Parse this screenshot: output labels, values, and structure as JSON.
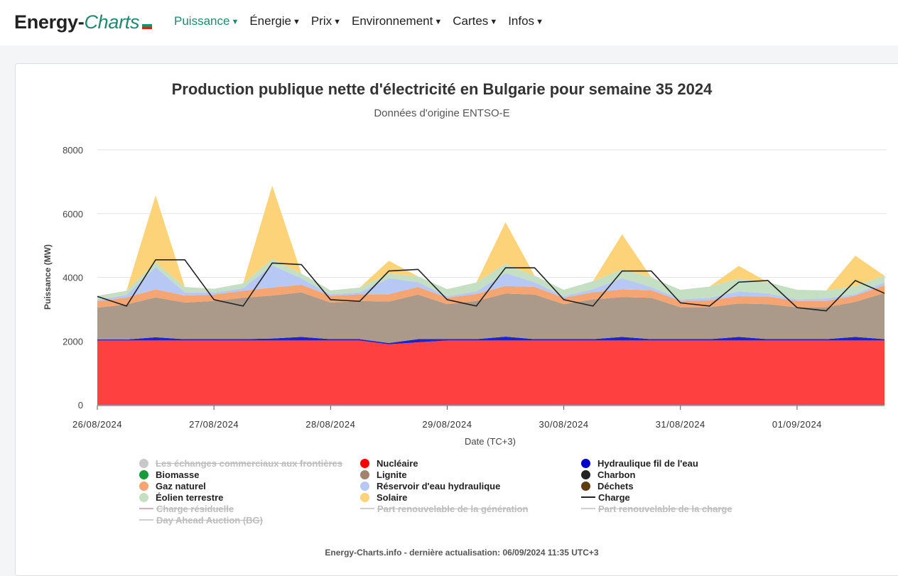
{
  "header": {
    "logo_prefix": "Energy-",
    "logo_suffix": "Charts",
    "flag_colors": [
      "#ffffff",
      "#00966e",
      "#d62612"
    ],
    "nav": [
      {
        "label": "Puissance",
        "active": true
      },
      {
        "label": "Énergie"
      },
      {
        "label": "Prix"
      },
      {
        "label": "Environnement"
      },
      {
        "label": "Cartes"
      },
      {
        "label": "Infos"
      }
    ]
  },
  "chart_data": {
    "type": "area",
    "title": "Production publique nette d'électricité en Bulgarie pour semaine 35 2024",
    "subtitle": "Données d'origine ENTSO-E",
    "xlabel": "Date (TC+3)",
    "ylabel": "Puissance (MW)",
    "ylim": [
      0,
      8000
    ],
    "yticks": [
      "0",
      "2000",
      "4000",
      "6000",
      "8000"
    ],
    "xticks": [
      "26/08/2024",
      "27/08/2024",
      "28/08/2024",
      "29/08/2024",
      "30/08/2024",
      "31/08/2024",
      "01/09/2024"
    ],
    "x": [
      "26/08/2024 00:00",
      "26/08/2024 06:00",
      "26/08/2024 12:00",
      "26/08/2024 18:00",
      "27/08/2024 00:00",
      "27/08/2024 06:00",
      "27/08/2024 12:00",
      "27/08/2024 18:00",
      "28/08/2024 00:00",
      "28/08/2024 06:00",
      "28/08/2024 12:00",
      "28/08/2024 18:00",
      "29/08/2024 00:00",
      "29/08/2024 06:00",
      "29/08/2024 12:00",
      "29/08/2024 18:00",
      "30/08/2024 00:00",
      "30/08/2024 06:00",
      "30/08/2024 12:00",
      "30/08/2024 18:00",
      "31/08/2024 00:00",
      "31/08/2024 06:00",
      "31/08/2024 12:00",
      "31/08/2024 18:00",
      "01/09/2024 00:00",
      "01/09/2024 06:00",
      "01/09/2024 12:00",
      "01/09/2024 18:00"
    ],
    "stack_series": [
      {
        "name": "Nucléaire",
        "color": "#ff4040",
        "values": [
          2020,
          2020,
          2020,
          2020,
          2020,
          2020,
          2020,
          2020,
          2020,
          2020,
          1900,
          1960,
          2020,
          2020,
          2020,
          2020,
          2020,
          2020,
          2020,
          2020,
          2020,
          2020,
          2020,
          2020,
          2020,
          2020,
          2020,
          2020
        ]
      },
      {
        "name": "Hydraulique fil de l'eau",
        "color": "#1e22c8",
        "values": [
          30,
          30,
          100,
          40,
          40,
          40,
          60,
          110,
          40,
          40,
          40,
          100,
          40,
          40,
          120,
          40,
          40,
          40,
          110,
          40,
          40,
          40,
          110,
          40,
          40,
          40,
          110,
          40
        ]
      },
      {
        "name": "Lignite",
        "color": "#ab9a8a",
        "values": [
          1000,
          1100,
          1250,
          1150,
          1200,
          1300,
          1350,
          1400,
          1150,
          1200,
          1300,
          1400,
          1100,
          1200,
          1350,
          1400,
          1100,
          1250,
          1250,
          1300,
          1000,
          1000,
          1050,
          1100,
          1000,
          1000,
          1100,
          1450
        ]
      },
      {
        "name": "Gaz naturel",
        "color": "#f5a571",
        "values": [
          200,
          220,
          250,
          220,
          200,
          220,
          250,
          240,
          210,
          210,
          230,
          240,
          200,
          220,
          240,
          240,
          200,
          220,
          240,
          240,
          200,
          220,
          230,
          240,
          200,
          200,
          200,
          240
        ]
      },
      {
        "name": "Réservoir d'eau hydraulique",
        "color": "#b7c8f5",
        "values": [
          50,
          80,
          700,
          100,
          60,
          80,
          700,
          200,
          50,
          60,
          500,
          150,
          50,
          80,
          400,
          150,
          50,
          100,
          350,
          100,
          50,
          80,
          150,
          100,
          50,
          80,
          50,
          100
        ]
      },
      {
        "name": "Éolien terrestre",
        "color": "#c5dfc3",
        "values": [
          120,
          130,
          150,
          170,
          120,
          150,
          200,
          150,
          120,
          150,
          150,
          180,
          220,
          280,
          300,
          200,
          200,
          250,
          280,
          300,
          300,
          350,
          400,
          350,
          300,
          250,
          250,
          200
        ]
      },
      {
        "name": "Solaire",
        "color": "#fdd37a",
        "values": [
          0,
          0,
          2100,
          0,
          0,
          0,
          2300,
          0,
          0,
          0,
          400,
          0,
          0,
          0,
          1300,
          0,
          0,
          0,
          1100,
          0,
          0,
          0,
          400,
          0,
          0,
          0,
          950,
          0
        ]
      }
    ],
    "line_series": [
      {
        "name": "Charge",
        "color": "#222222",
        "values": [
          3400,
          3100,
          4550,
          4550,
          3300,
          3100,
          4450,
          4400,
          3300,
          3250,
          4200,
          4250,
          3300,
          3100,
          4300,
          4300,
          3300,
          3100,
          4200,
          4200,
          3200,
          3100,
          3850,
          3900,
          3050,
          2950,
          3900,
          3500
        ]
      }
    ],
    "legend": [
      {
        "name": "Les échanges commerciaux aux frontières",
        "color": "#c8c8c8",
        "kind": "dot",
        "visible": false
      },
      {
        "name": "Nucléaire",
        "color": "#ff0000",
        "kind": "dot",
        "visible": true
      },
      {
        "name": "Hydraulique fil de l'eau",
        "color": "#0000cc",
        "kind": "dot",
        "visible": true
      },
      {
        "name": "Biomasse",
        "color": "#179a3a",
        "kind": "dot",
        "visible": true
      },
      {
        "name": "Lignite",
        "color": "#a08470",
        "kind": "dot",
        "visible": true
      },
      {
        "name": "Charbon",
        "color": "#222222",
        "kind": "dot",
        "visible": true
      },
      {
        "name": "Gaz naturel",
        "color": "#f5a571",
        "kind": "dot",
        "visible": true
      },
      {
        "name": "Réservoir d'eau hydraulique",
        "color": "#b7c8f5",
        "kind": "dot",
        "visible": true
      },
      {
        "name": "Déchets",
        "color": "#5c3b0e",
        "kind": "dot",
        "visible": true
      },
      {
        "name": "Éolien terrestre",
        "color": "#c5dfc3",
        "kind": "dot",
        "visible": true
      },
      {
        "name": "Solaire",
        "color": "#fdd37a",
        "kind": "dot",
        "visible": true
      },
      {
        "name": "Charge",
        "color": "#222222",
        "kind": "line",
        "visible": true
      },
      {
        "name": "Charge résiduelle",
        "color": "#d4b0b0",
        "kind": "line",
        "visible": false
      },
      {
        "name": "Part renouvelable de la génération",
        "color": "#cfcfcf",
        "kind": "line",
        "visible": false
      },
      {
        "name": "Part renouvelable de la charge",
        "color": "#cfcfcf",
        "kind": "line",
        "visible": false
      },
      {
        "name": "Day Ahead Auction (BG)",
        "color": "#cfcfcf",
        "kind": "line",
        "visible": false
      }
    ]
  },
  "footer": "Energy-Charts.info - dernière actualisation: 06/09/2024 11:35 UTC+3"
}
